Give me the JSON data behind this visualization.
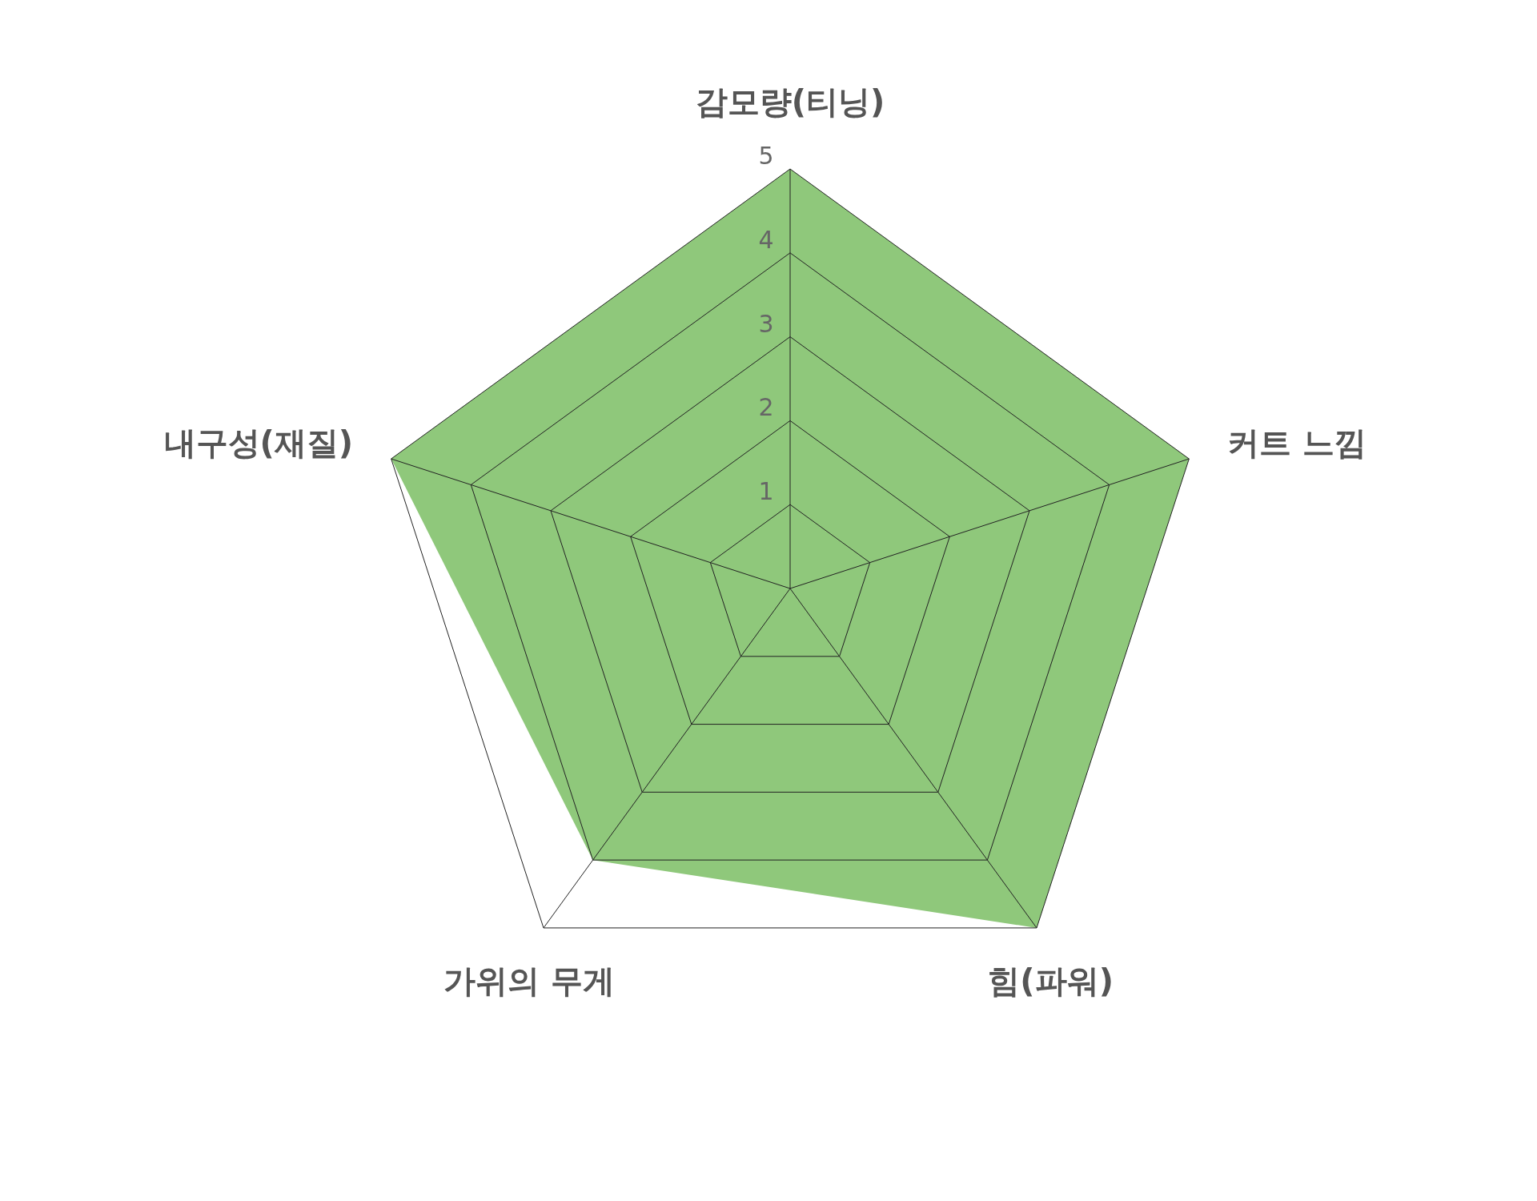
{
  "chart_data": {
    "type": "radar",
    "categories": [
      "감모량(티닝)",
      "커트 느낌",
      "힘(파워)",
      "가위의 무게",
      "내구성(재질)"
    ],
    "series": [
      {
        "color": "#8fc87b",
        "values": [
          5,
          5,
          5,
          4,
          5
        ]
      }
    ],
    "ylim": [
      0,
      5
    ],
    "yticks": [
      1,
      2,
      3,
      4,
      5
    ],
    "grid": true
  }
}
